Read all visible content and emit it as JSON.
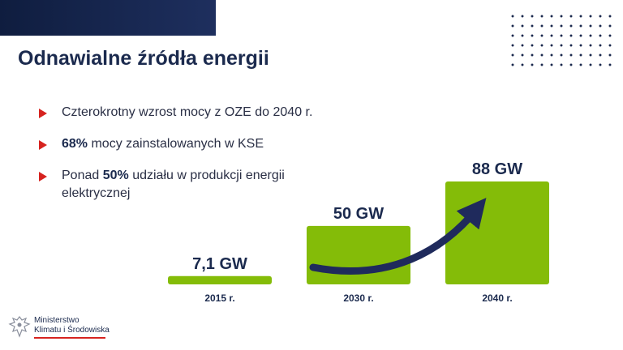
{
  "slide": {
    "title": "Odnawialne źródła energii"
  },
  "bullets": [
    {
      "parts": [
        {
          "text": "Czterokrotny wzrost mocy z OZE do 2040 r.",
          "bold": false
        }
      ]
    },
    {
      "parts": [
        {
          "text": "68%",
          "bold": true
        },
        {
          "text": " mocy zainstalowanych w KSE",
          "bold": false
        }
      ]
    },
    {
      "parts": [
        {
          "text": "Ponad ",
          "bold": false
        },
        {
          "text": "50%",
          "bold": true
        },
        {
          "text": " udziału w produkcji energii elektrycznej",
          "bold": false
        }
      ]
    }
  ],
  "chart_data": {
    "type": "bar",
    "categories": [
      "2015 r.",
      "2030 r.",
      "2040 r."
    ],
    "values": [
      7.1,
      50,
      88
    ],
    "value_labels": [
      "7,1 GW",
      "50 GW",
      "88 GW"
    ],
    "title": "",
    "xlabel": "",
    "ylabel": "",
    "grid": false,
    "legend": "none",
    "colors": {
      "bar": "#84bc08",
      "text": "#1b2a4e",
      "arrow": "#1f2a5c"
    }
  },
  "logo": {
    "line1": "Ministerstwo",
    "line2": "Klimatu i Środowiska"
  },
  "colors": {
    "navy": "#1b2a4e",
    "accent_red": "#d6231f",
    "green": "#84bc08"
  }
}
